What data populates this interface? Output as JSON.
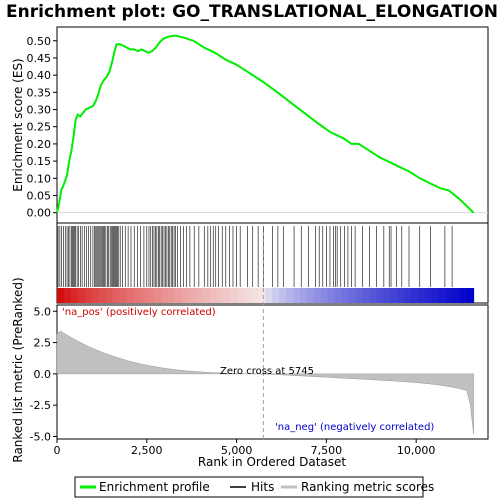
{
  "chart_data": {
    "type": "line",
    "title": "Enrichment plot: GO_TRANSLATIONAL_ELONGATION",
    "ylabel_top": "Enrichment score (ES)",
    "ylabel_bottom": "Ranked list metric (PreRanked)",
    "xlabel": "Rank in Ordered Dataset",
    "xlim": [
      0,
      12000
    ],
    "x_ticks": [
      0,
      2500,
      5000,
      7500,
      10000
    ],
    "x_tick_labels": [
      "0",
      "2,500",
      "5,000",
      "7,500",
      "10,000"
    ],
    "es_ylim": [
      -0.03,
      0.54
    ],
    "es_ticks": [
      0.0,
      0.05,
      0.1,
      0.15,
      0.2,
      0.25,
      0.3,
      0.35,
      0.4,
      0.45,
      0.5
    ],
    "es_tick_labels": [
      "0.00",
      "0.05",
      "0.10",
      "0.15",
      "0.20",
      "0.25",
      "0.30",
      "0.35",
      "0.40",
      "0.45",
      "0.50"
    ],
    "metric_ylim": [
      -5.2,
      5.5
    ],
    "metric_ticks": [
      -5.0,
      -2.5,
      0.0,
      2.5,
      5.0
    ],
    "metric_tick_labels": [
      "-5.0",
      "-2.5",
      "0.0",
      "2.5",
      "5.0"
    ],
    "zero_cross": 5745,
    "n_genes": 11600,
    "annotations": {
      "pos": "'na_pos' (positively correlated)",
      "neg": "'na_neg' (negatively correlated)",
      "zero": "Zero cross at 5745"
    },
    "legend": [
      "Enrichment profile",
      "Hits",
      "Ranking metric scores"
    ],
    "colors": {
      "es_line": "#00ee00",
      "hits": "#000000",
      "metric_fill": "#c0c0c0",
      "pos_color": "#dd0000",
      "neg_color": "#0000cc",
      "zero_line": "#a0a0a0"
    },
    "es_curve": [
      [
        0,
        0.0
      ],
      [
        60,
        0.03
      ],
      [
        120,
        0.065
      ],
      [
        200,
        0.085
      ],
      [
        280,
        0.11
      ],
      [
        340,
        0.15
      ],
      [
        400,
        0.18
      ],
      [
        460,
        0.22
      ],
      [
        520,
        0.27
      ],
      [
        580,
        0.285
      ],
      [
        650,
        0.28
      ],
      [
        720,
        0.29
      ],
      [
        800,
        0.3
      ],
      [
        900,
        0.305
      ],
      [
        1000,
        0.31
      ],
      [
        1080,
        0.325
      ],
      [
        1150,
        0.345
      ],
      [
        1220,
        0.37
      ],
      [
        1300,
        0.385
      ],
      [
        1380,
        0.395
      ],
      [
        1460,
        0.41
      ],
      [
        1540,
        0.44
      ],
      [
        1600,
        0.47
      ],
      [
        1660,
        0.49
      ],
      [
        1750,
        0.49
      ],
      [
        1850,
        0.485
      ],
      [
        1950,
        0.48
      ],
      [
        2050,
        0.475
      ],
      [
        2150,
        0.475
      ],
      [
        2250,
        0.47
      ],
      [
        2350,
        0.475
      ],
      [
        2450,
        0.47
      ],
      [
        2550,
        0.465
      ],
      [
        2650,
        0.47
      ],
      [
        2750,
        0.48
      ],
      [
        2850,
        0.495
      ],
      [
        2950,
        0.505
      ],
      [
        3050,
        0.51
      ],
      [
        3150,
        0.513
      ],
      [
        3300,
        0.515
      ],
      [
        3500,
        0.51
      ],
      [
        3800,
        0.5
      ],
      [
        4100,
        0.48
      ],
      [
        4400,
        0.465
      ],
      [
        4700,
        0.445
      ],
      [
        5000,
        0.43
      ],
      [
        5300,
        0.41
      ],
      [
        5745,
        0.38
      ],
      [
        6200,
        0.345
      ],
      [
        6700,
        0.305
      ],
      [
        7200,
        0.265
      ],
      [
        7600,
        0.235
      ],
      [
        8000,
        0.215
      ],
      [
        8200,
        0.2
      ],
      [
        8400,
        0.2
      ],
      [
        8700,
        0.18
      ],
      [
        9000,
        0.16
      ],
      [
        9300,
        0.145
      ],
      [
        9500,
        0.135
      ],
      [
        9800,
        0.12
      ],
      [
        10100,
        0.1
      ],
      [
        10400,
        0.085
      ],
      [
        10700,
        0.07
      ],
      [
        10900,
        0.065
      ],
      [
        11200,
        0.04
      ],
      [
        11450,
        0.015
      ],
      [
        11600,
        0.0
      ]
    ],
    "hits": [
      30,
      80,
      130,
      180,
      230,
      280,
      320,
      360,
      400,
      430,
      460,
      490,
      520,
      560,
      600,
      650,
      700,
      760,
      820,
      880,
      940,
      1000,
      1040,
      1080,
      1110,
      1140,
      1170,
      1200,
      1230,
      1260,
      1290,
      1320,
      1360,
      1400,
      1440,
      1480,
      1510,
      1540,
      1570,
      1600,
      1630,
      1660,
      1690,
      1720,
      1760,
      1820,
      1900,
      1980,
      2060,
      2150,
      2240,
      2330,
      2420,
      2500,
      2560,
      2610,
      2660,
      2700,
      2740,
      2780,
      2820,
      2860,
      2900,
      2940,
      2980,
      3020,
      3060,
      3100,
      3140,
      3180,
      3220,
      3260,
      3300,
      3360,
      3440,
      3520,
      3600,
      3700,
      3820,
      3950,
      4100,
      4200,
      4280,
      4350,
      4420,
      4500,
      4600,
      4700,
      4800,
      4900,
      5000,
      5100,
      5300,
      5450,
      5600,
      5750,
      6000,
      6150,
      6300,
      6600,
      6800,
      7000,
      7200,
      7300,
      7400,
      7500,
      7600,
      7700,
      7750,
      7800,
      7900,
      8000,
      8100,
      8200,
      8300,
      8500,
      8700,
      8900,
      9100,
      9250,
      9300,
      9450,
      9600,
      9800,
      10100,
      10400,
      10800,
      11000
    ]
  }
}
